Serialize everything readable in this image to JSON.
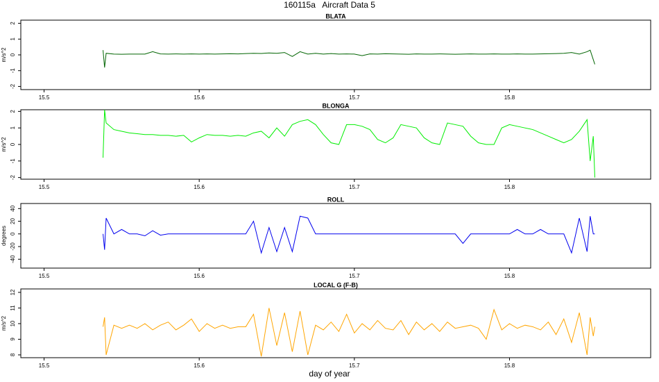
{
  "title": "160115a   Aircraft Data 5",
  "x_label": "day of year",
  "chart_data": [
    {
      "type": "line",
      "title": "BLATA",
      "y_label": "m/s^2",
      "color": "#006400",
      "x": [
        15.538,
        15.539,
        15.54,
        15.545,
        15.55,
        15.555,
        15.56,
        15.565,
        15.57,
        15.575,
        15.58,
        15.585,
        15.59,
        15.595,
        15.6,
        15.605,
        15.61,
        15.615,
        15.62,
        15.625,
        15.63,
        15.635,
        15.64,
        15.645,
        15.65,
        15.655,
        15.66,
        15.665,
        15.67,
        15.675,
        15.68,
        15.685,
        15.69,
        15.695,
        15.7,
        15.705,
        15.71,
        15.715,
        15.72,
        15.725,
        15.73,
        15.735,
        15.74,
        15.745,
        15.75,
        15.755,
        15.76,
        15.765,
        15.77,
        15.775,
        15.78,
        15.785,
        15.79,
        15.795,
        15.8,
        15.805,
        15.81,
        15.815,
        15.82,
        15.825,
        15.83,
        15.835,
        15.84,
        15.845,
        15.85,
        15.852,
        15.854,
        15.855
      ],
      "values": [
        0.3,
        -0.8,
        0.1,
        0.05,
        0.04,
        0.05,
        0.05,
        0.05,
        0.2,
        0.06,
        0.05,
        0.06,
        0.05,
        0.06,
        0.05,
        0.06,
        0.05,
        0.06,
        0.07,
        0.06,
        0.08,
        0.1,
        0.09,
        0.12,
        0.1,
        0.15,
        -0.1,
        0.2,
        0.05,
        0.1,
        0.05,
        0.08,
        0.05,
        0.06,
        0.05,
        -0.05,
        0.06,
        0.05,
        0.07,
        0.06,
        0.05,
        0.04,
        0.06,
        0.05,
        0.05,
        0.06,
        0.05,
        0.04,
        0.05,
        0.06,
        0.05,
        0.05,
        0.06,
        0.05,
        0.05,
        0.06,
        0.05,
        0.05,
        0.06,
        0.07,
        0.08,
        0.1,
        0.15,
        0.05,
        0.2,
        0.3,
        -0.3,
        -0.6
      ],
      "xlim": [
        15.485,
        15.891
      ],
      "ylim": [
        -2.2,
        2.2
      ],
      "xticks": [
        15.5,
        15.6,
        15.7,
        15.8
      ],
      "yticks": [
        -2,
        -1,
        0,
        1,
        2
      ]
    },
    {
      "type": "line",
      "title": "BLONGA",
      "y_label": "m/s^2",
      "color": "#00ee00",
      "x": [
        15.538,
        15.539,
        15.54,
        15.545,
        15.55,
        15.555,
        15.56,
        15.565,
        15.57,
        15.575,
        15.58,
        15.585,
        15.59,
        15.595,
        15.6,
        15.605,
        15.61,
        15.615,
        15.62,
        15.625,
        15.63,
        15.635,
        15.64,
        15.645,
        15.65,
        15.655,
        15.66,
        15.665,
        15.67,
        15.675,
        15.68,
        15.685,
        15.69,
        15.695,
        15.7,
        15.705,
        15.71,
        15.715,
        15.72,
        15.725,
        15.73,
        15.735,
        15.74,
        15.745,
        15.75,
        15.755,
        15.76,
        15.765,
        15.77,
        15.775,
        15.78,
        15.785,
        15.79,
        15.795,
        15.8,
        15.805,
        15.81,
        15.815,
        15.82,
        15.825,
        15.83,
        15.835,
        15.84,
        15.845,
        15.85,
        15.852,
        15.854,
        15.855
      ],
      "values": [
        -0.8,
        2.1,
        1.3,
        0.9,
        0.8,
        0.7,
        0.65,
        0.6,
        0.6,
        0.55,
        0.55,
        0.5,
        0.55,
        0.15,
        0.4,
        0.6,
        0.55,
        0.55,
        0.5,
        0.55,
        0.5,
        0.7,
        0.8,
        0.4,
        1.0,
        0.5,
        1.2,
        1.4,
        1.5,
        1.2,
        0.6,
        0.1,
        0.0,
        1.2,
        1.2,
        1.1,
        0.9,
        0.3,
        0.1,
        0.4,
        1.2,
        1.1,
        1.0,
        0.4,
        0.1,
        0.0,
        1.3,
        1.2,
        1.1,
        0.5,
        0.1,
        0.0,
        0.0,
        1.0,
        1.2,
        1.1,
        1.0,
        0.9,
        0.7,
        0.5,
        0.3,
        0.1,
        0.3,
        0.8,
        1.5,
        -1.0,
        0.5,
        -2.0
      ],
      "xlim": [
        15.485,
        15.891
      ],
      "ylim": [
        -2.1,
        2.1
      ],
      "xticks": [
        15.5,
        15.6,
        15.7,
        15.8
      ],
      "yticks": [
        -2,
        -1,
        0,
        1,
        2
      ]
    },
    {
      "type": "line",
      "title": "ROLL",
      "y_label": "degrees",
      "color": "#0000ee",
      "x": [
        15.538,
        15.539,
        15.54,
        15.545,
        15.55,
        15.555,
        15.56,
        15.565,
        15.57,
        15.575,
        15.58,
        15.585,
        15.59,
        15.595,
        15.6,
        15.605,
        15.61,
        15.615,
        15.62,
        15.625,
        15.63,
        15.635,
        15.64,
        15.645,
        15.65,
        15.655,
        15.66,
        15.665,
        15.67,
        15.675,
        15.68,
        15.685,
        15.69,
        15.695,
        15.7,
        15.705,
        15.71,
        15.715,
        15.72,
        15.725,
        15.73,
        15.735,
        15.74,
        15.745,
        15.75,
        15.755,
        15.76,
        15.765,
        15.77,
        15.775,
        15.78,
        15.785,
        15.79,
        15.795,
        15.8,
        15.805,
        15.81,
        15.815,
        15.82,
        15.825,
        15.83,
        15.835,
        15.84,
        15.845,
        15.85,
        15.852,
        15.854,
        15.855
      ],
      "values": [
        0,
        -25,
        25,
        0,
        7,
        0,
        0,
        -3,
        5,
        -2,
        0,
        0,
        0,
        0,
        0,
        0,
        0,
        0,
        0,
        0,
        0,
        20,
        -30,
        10,
        -28,
        10,
        -28,
        28,
        25,
        0,
        0,
        0,
        0,
        0,
        0,
        0,
        0,
        0,
        0,
        0,
        0,
        0,
        0,
        0,
        0,
        0,
        0,
        0,
        -15,
        0,
        0,
        0,
        0,
        0,
        0,
        7,
        0,
        0,
        7,
        0,
        0,
        0,
        -30,
        25,
        -28,
        28,
        0,
        0
      ],
      "xlim": [
        15.485,
        15.891
      ],
      "ylim": [
        -54,
        48
      ],
      "xticks": [
        15.5,
        15.6,
        15.7,
        15.8
      ],
      "yticks": [
        -40,
        -20,
        0,
        20,
        40
      ]
    },
    {
      "type": "line",
      "title": "LOCAL G (F-B)",
      "y_label": "m/s^2",
      "color": "#ffa500",
      "x": [
        15.538,
        15.539,
        15.54,
        15.545,
        15.55,
        15.555,
        15.56,
        15.565,
        15.57,
        15.575,
        15.58,
        15.585,
        15.59,
        15.595,
        15.6,
        15.605,
        15.61,
        15.615,
        15.62,
        15.625,
        15.63,
        15.635,
        15.64,
        15.645,
        15.65,
        15.655,
        15.66,
        15.665,
        15.67,
        15.675,
        15.68,
        15.685,
        15.69,
        15.695,
        15.7,
        15.705,
        15.71,
        15.715,
        15.72,
        15.725,
        15.73,
        15.735,
        15.74,
        15.745,
        15.75,
        15.755,
        15.76,
        15.765,
        15.77,
        15.775,
        15.78,
        15.785,
        15.79,
        15.795,
        15.8,
        15.805,
        15.81,
        15.815,
        15.82,
        15.825,
        15.83,
        15.835,
        15.84,
        15.845,
        15.85,
        15.852,
        15.854,
        15.855
      ],
      "values": [
        9.8,
        10.4,
        8.0,
        9.9,
        9.7,
        9.9,
        9.7,
        10.0,
        9.6,
        9.9,
        10.1,
        9.6,
        9.9,
        10.3,
        9.5,
        10.0,
        9.7,
        9.9,
        9.7,
        9.8,
        9.8,
        10.6,
        7.9,
        11.0,
        8.6,
        10.7,
        8.2,
        10.8,
        8.0,
        9.9,
        9.6,
        10.1,
        9.5,
        10.6,
        9.4,
        10.0,
        9.6,
        10.2,
        9.7,
        9.6,
        10.2,
        9.3,
        10.1,
        9.6,
        10.0,
        9.5,
        10.1,
        9.7,
        9.8,
        9.9,
        9.7,
        9.0,
        10.9,
        9.6,
        10.0,
        9.7,
        9.9,
        9.8,
        9.6,
        10.1,
        9.3,
        10.3,
        8.8,
        10.7,
        8.0,
        10.4,
        9.2,
        9.8
      ],
      "xlim": [
        15.485,
        15.891
      ],
      "ylim": [
        7.82,
        12.22
      ],
      "xticks": [
        15.5,
        15.6,
        15.7,
        15.8
      ],
      "yticks": [
        8,
        9,
        10,
        11,
        12
      ]
    }
  ]
}
